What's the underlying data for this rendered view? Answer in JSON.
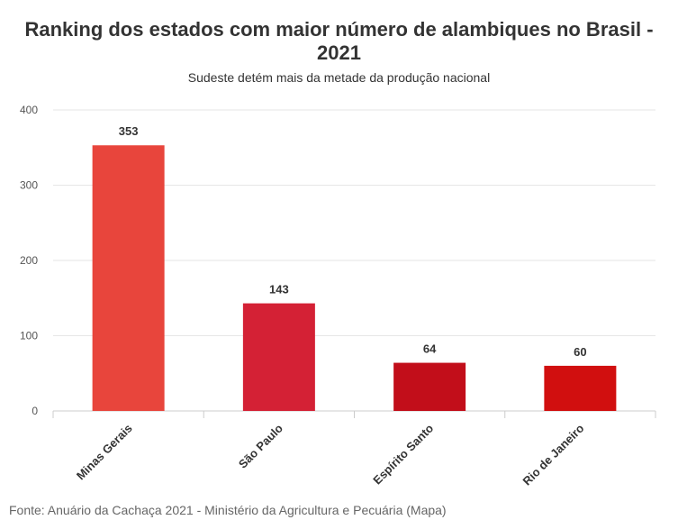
{
  "chart_data": {
    "type": "bar",
    "title": "Ranking dos estados com maior número de alambiques no Brasil - 2021",
    "subtitle": "Sudeste detém mais da metade da produção nacional",
    "categories": [
      "Minas Gerais",
      "São Paulo",
      "Espírito Santo",
      "Rio de Janeiro"
    ],
    "values": [
      353,
      143,
      64,
      60
    ],
    "value_labels": [
      "353",
      "143",
      "64",
      "60"
    ],
    "colors": [
      "#e8453c",
      "#d42135",
      "#c20e1a",
      "#d10f0f"
    ],
    "ylim": [
      0,
      400
    ],
    "yticks": [
      0,
      100,
      200,
      300,
      400
    ],
    "ytick_labels": [
      "0",
      "100",
      "200",
      "300",
      "400"
    ],
    "xlabel": "",
    "ylabel": "",
    "grid": true,
    "source": "Fonte: Anuário da Cachaça 2021 - Ministério da Agricultura e Pecuária (Mapa)"
  }
}
